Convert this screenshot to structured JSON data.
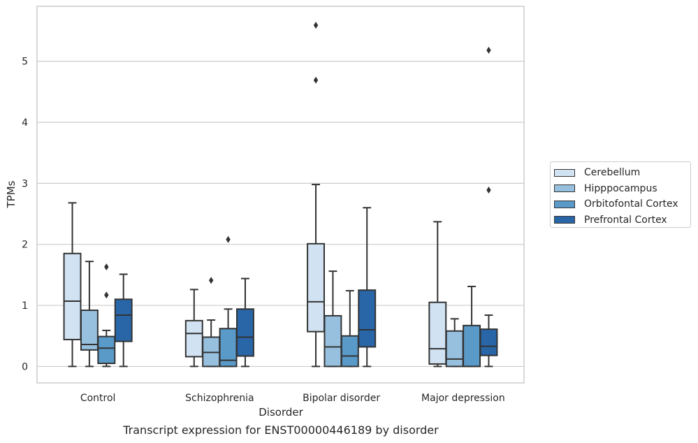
{
  "chart_data": {
    "type": "box",
    "title": "",
    "caption": "Transcript expression for ENST00000446189 by disorder",
    "xlabel": "Disorder",
    "ylabel": "TPMs",
    "ylim": [
      -0.27,
      5.9
    ],
    "yticks": [
      0,
      1,
      2,
      3,
      4,
      5
    ],
    "grid": "horizontal",
    "legend_position": "right",
    "categories": [
      "Control",
      "Schizophrenia",
      "Bipolar disorder",
      "Major depression"
    ],
    "series": [
      {
        "name": "Cerebellum",
        "color": "#d1e2f2",
        "boxes": [
          {
            "whisker_low": 0,
            "q1": 0.44,
            "median": 1.07,
            "q3": 1.85,
            "whisker_high": 2.68,
            "outliers": []
          },
          {
            "whisker_low": 0,
            "q1": 0.16,
            "median": 0.54,
            "q3": 0.75,
            "whisker_high": 1.26,
            "outliers": []
          },
          {
            "whisker_low": 0,
            "q1": 0.57,
            "median": 1.06,
            "q3": 2.01,
            "whisker_high": 2.98,
            "outliers": [
              4.69,
              5.59
            ]
          },
          {
            "whisker_low": 0,
            "q1": 0.04,
            "median": 0.29,
            "q3": 1.05,
            "whisker_high": 2.37,
            "outliers": []
          }
        ]
      },
      {
        "name": "Hipppocampus",
        "color": "#97c0df",
        "boxes": [
          {
            "whisker_low": 0,
            "q1": 0.27,
            "median": 0.36,
            "q3": 0.92,
            "whisker_high": 1.72,
            "outliers": []
          },
          {
            "whisker_low": 0,
            "q1": 0,
            "median": 0.23,
            "q3": 0.48,
            "whisker_high": 0.76,
            "outliers": [
              1.41
            ]
          },
          {
            "whisker_low": 0,
            "q1": 0,
            "median": 0.32,
            "q3": 0.83,
            "whisker_high": 1.56,
            "outliers": []
          },
          {
            "whisker_low": 0,
            "q1": 0,
            "median": 0.12,
            "q3": 0.58,
            "whisker_high": 0.78,
            "outliers": []
          }
        ]
      },
      {
        "name": "Orbitofontal Cortex",
        "color": "#5a9ac8",
        "boxes": [
          {
            "whisker_low": 0,
            "q1": 0.05,
            "median": 0.3,
            "q3": 0.49,
            "whisker_high": 0.59,
            "outliers": [
              1.17,
              1.63
            ]
          },
          {
            "whisker_low": 0,
            "q1": 0,
            "median": 0.1,
            "q3": 0.62,
            "whisker_high": 0.94,
            "outliers": [
              2.08
            ]
          },
          {
            "whisker_low": 0,
            "q1": 0,
            "median": 0.17,
            "q3": 0.5,
            "whisker_high": 1.24,
            "outliers": []
          },
          {
            "whisker_low": 0,
            "q1": 0,
            "median": 0,
            "q3": 0.67,
            "whisker_high": 1.31,
            "outliers": []
          }
        ]
      },
      {
        "name": "Prefrontal Cortex",
        "color": "#2866a8",
        "boxes": [
          {
            "whisker_low": 0,
            "q1": 0.41,
            "median": 0.84,
            "q3": 1.1,
            "whisker_high": 1.51,
            "outliers": []
          },
          {
            "whisker_low": 0,
            "q1": 0.17,
            "median": 0.48,
            "q3": 0.94,
            "whisker_high": 1.44,
            "outliers": []
          },
          {
            "whisker_low": 0,
            "q1": 0.32,
            "median": 0.6,
            "q3": 1.25,
            "whisker_high": 2.6,
            "outliers": []
          },
          {
            "whisker_low": 0,
            "q1": 0.18,
            "median": 0.33,
            "q3": 0.61,
            "whisker_high": 0.84,
            "outliers": [
              2.89,
              5.18
            ]
          }
        ]
      }
    ]
  }
}
